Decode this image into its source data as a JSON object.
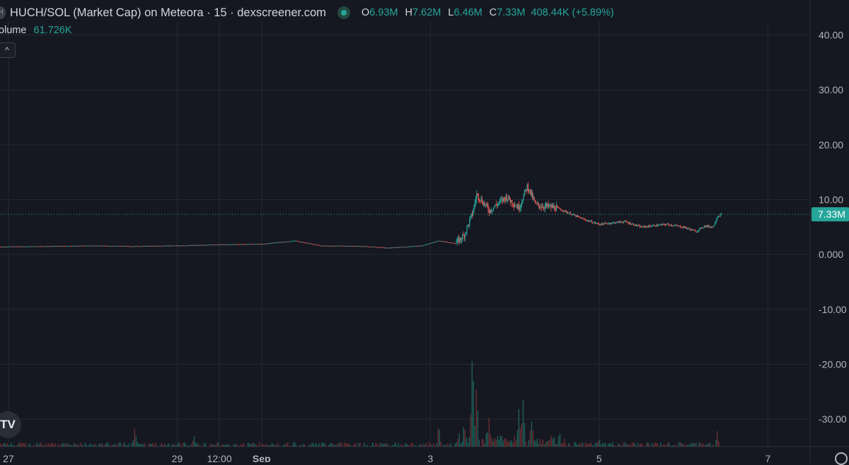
{
  "legend": {
    "symbol_icon_text": "H",
    "title": "HUCH/SOL (Market Cap) on Meteora · 15 · dexscreener.com",
    "ohlc": {
      "o_label": "O",
      "o_value": "6.93M",
      "h_label": "H",
      "h_value": "7.62M",
      "l_label": "L",
      "l_value": "6.46M",
      "c_label": "C",
      "c_value": "7.33M",
      "change": "408.44K (+5.89%)"
    }
  },
  "volume_legend": {
    "label": "olume",
    "value": "61.726K"
  },
  "buttons": {
    "collapse_glyph": "^",
    "logo_text": "TV"
  },
  "icons": [
    "symbol-icon",
    "eye-icon",
    "chevron-up-icon",
    "tradingview-logo-icon",
    "settings-icon"
  ],
  "colors": {
    "background": "#151821",
    "up": "#26a69a",
    "down": "#ef5350",
    "grid": "#252935",
    "price_line": "#26a69a"
  },
  "chart_data": {
    "type": "candlestick",
    "price_axis_labels": [
      "40.00",
      "30.00",
      "20.00",
      "10.00",
      "0.000",
      "-10.00",
      "-20.00",
      "-30.00"
    ],
    "price_axis_values": [
      40,
      30,
      20,
      10,
      0,
      -10,
      -20,
      -30
    ],
    "time_axis_labels": [
      "27",
      "29",
      "12:00",
      "Sep",
      "3",
      "5",
      "7"
    ],
    "time_axis_values": [
      0,
      2,
      2.5,
      3,
      5,
      7,
      9
    ],
    "x_range_days": [
      -0.1,
      9.5
    ],
    "ylim": [
      -35,
      42.5
    ],
    "current_price_label": "7.33M",
    "current_price": 7.33,
    "grid": true,
    "price_series": [
      {
        "t": -0.1,
        "v": 1.4
      },
      {
        "t": 0.5,
        "v": 1.5
      },
      {
        "t": 1.0,
        "v": 1.6
      },
      {
        "t": 1.5,
        "v": 1.5
      },
      {
        "t": 2.0,
        "v": 1.6
      },
      {
        "t": 2.5,
        "v": 1.8
      },
      {
        "t": 3.0,
        "v": 1.9
      },
      {
        "t": 3.4,
        "v": 2.5
      },
      {
        "t": 3.7,
        "v": 1.6
      },
      {
        "t": 4.2,
        "v": 1.5
      },
      {
        "t": 4.5,
        "v": 1.2
      },
      {
        "t": 4.9,
        "v": 1.6
      },
      {
        "t": 5.1,
        "v": 2.5
      },
      {
        "t": 5.3,
        "v": 2.0
      },
      {
        "t": 5.4,
        "v": 3.5
      },
      {
        "t": 5.5,
        "v": 7.5
      },
      {
        "t": 5.55,
        "v": 11.0
      },
      {
        "t": 5.7,
        "v": 8.0
      },
      {
        "t": 5.9,
        "v": 10.5
      },
      {
        "t": 6.05,
        "v": 8.5
      },
      {
        "t": 6.15,
        "v": 12.5
      },
      {
        "t": 6.25,
        "v": 9.0
      },
      {
        "t": 6.5,
        "v": 8.5
      },
      {
        "t": 6.8,
        "v": 6.5
      },
      {
        "t": 7.0,
        "v": 5.5
      },
      {
        "t": 7.3,
        "v": 6.0
      },
      {
        "t": 7.5,
        "v": 5.0
      },
      {
        "t": 7.8,
        "v": 5.5
      },
      {
        "t": 8.0,
        "v": 5.0
      },
      {
        "t": 8.15,
        "v": 4.2
      },
      {
        "t": 8.25,
        "v": 5.2
      },
      {
        "t": 8.35,
        "v": 5.0
      },
      {
        "t": 8.4,
        "v": 6.9
      },
      {
        "t": 8.45,
        "v": 7.33
      }
    ],
    "volume_spikes": [
      {
        "t": 5.5,
        "v": 1.0
      },
      {
        "t": 5.55,
        "v": 0.6
      },
      {
        "t": 6.1,
        "v": 0.38
      },
      {
        "t": 6.05,
        "v": 0.3
      },
      {
        "t": 5.1,
        "v": 0.28
      },
      {
        "t": 5.4,
        "v": 0.25
      },
      {
        "t": 5.7,
        "v": 0.22
      },
      {
        "t": 6.2,
        "v": 0.18
      },
      {
        "t": 1.5,
        "v": 0.2
      },
      {
        "t": 2.2,
        "v": 0.12
      },
      {
        "t": 7.0,
        "v": 0.1
      },
      {
        "t": 8.4,
        "v": 0.15
      }
    ]
  }
}
